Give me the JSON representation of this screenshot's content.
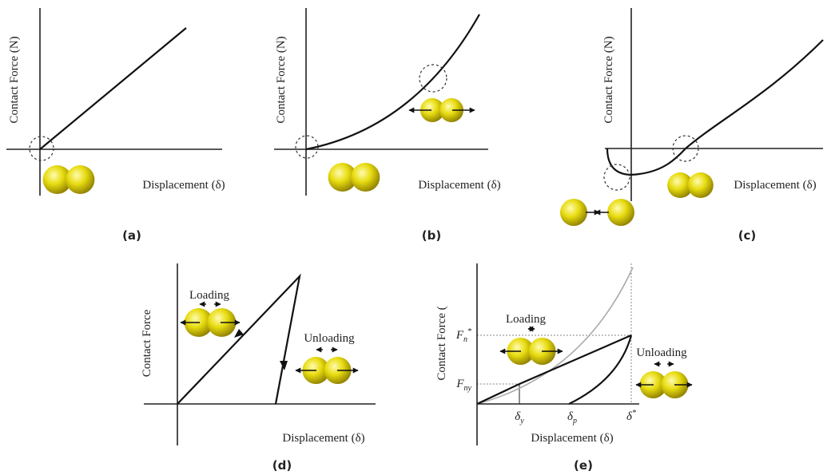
{
  "panels": [
    {
      "y_label": "Contact Force (N)",
      "x_label": "Displacement (δ)",
      "caption": "(a)"
    },
    {
      "y_label": "Contact Force (N)",
      "x_label": "Displacement (δ)",
      "caption": "(b)"
    },
    {
      "y_label": "Contact Force (N)",
      "x_label": "Displacement (δ)",
      "caption": "(c)"
    },
    {
      "y_label": "Contact Force",
      "x_label": "Displacement (δ)",
      "caption": "(d)",
      "loading": "Loading",
      "unloading": "Unloading"
    },
    {
      "y_label": "Contact Force (",
      "x_label": "Displacement (δ)",
      "caption": "(e)",
      "loading": "Loading",
      "unloading": "Unloading",
      "y_ticks": [
        {
          "base": "F",
          "sub": "n",
          "sup": "*"
        },
        {
          "base": "F",
          "sub": "ny"
        }
      ],
      "x_ticks": [
        {
          "base": "δ",
          "sub": "y"
        },
        {
          "base": "δ",
          "sub": "p"
        },
        {
          "base": "δ",
          "sup": "*"
        }
      ]
    }
  ]
}
